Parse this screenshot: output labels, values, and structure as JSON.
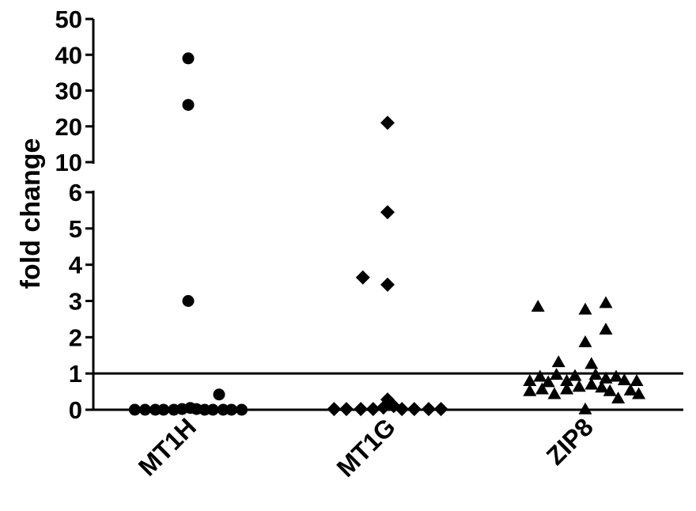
{
  "chart_data": {
    "type": "scatter",
    "ylabel": "fold change",
    "categories": [
      "MT1H",
      "MT1G",
      "ZIP8"
    ],
    "y_axis": {
      "broken": true,
      "lower_segment": {
        "range": [
          0,
          6
        ],
        "ticks": [
          0,
          1,
          2,
          3,
          4,
          5,
          6
        ]
      },
      "upper_segment": {
        "range": [
          10,
          50
        ],
        "ticks": [
          10,
          20,
          30,
          40,
          50
        ]
      }
    },
    "reference_lines": [
      0,
      1
    ],
    "grid": false,
    "series": [
      {
        "category": "MT1H",
        "marker": "circle",
        "points": [
          {
            "x": -0.26,
            "y": 0
          },
          {
            "x": -0.21,
            "y": 0
          },
          {
            "x": -0.16,
            "y": 0
          },
          {
            "x": -0.12,
            "y": 0
          },
          {
            "x": -0.07,
            "y": 0
          },
          {
            "x": -0.03,
            "y": 0.02
          },
          {
            "x": 0.01,
            "y": 0.05
          },
          {
            "x": 0.04,
            "y": 0.02
          },
          {
            "x": 0.08,
            "y": 0
          },
          {
            "x": 0.12,
            "y": 0
          },
          {
            "x": 0.17,
            "y": 0
          },
          {
            "x": 0.21,
            "y": 0
          },
          {
            "x": 0.26,
            "y": 0
          },
          {
            "x": 0.15,
            "y": 0.42
          },
          {
            "x": 0,
            "y": 3.0
          },
          {
            "x": 0,
            "y": 26
          },
          {
            "x": 0,
            "y": 39
          }
        ]
      },
      {
        "category": "MT1G",
        "marker": "diamond",
        "points": [
          {
            "x": -0.26,
            "y": 0.02
          },
          {
            "x": -0.2,
            "y": 0.02
          },
          {
            "x": -0.13,
            "y": 0.02
          },
          {
            "x": -0.07,
            "y": 0.02
          },
          {
            "x": -0.02,
            "y": 0.06
          },
          {
            "x": 0.0,
            "y": 0.28
          },
          {
            "x": 0.03,
            "y": 0.1
          },
          {
            "x": 0.07,
            "y": 0.02
          },
          {
            "x": 0.13,
            "y": 0.02
          },
          {
            "x": 0.2,
            "y": 0.02
          },
          {
            "x": 0.26,
            "y": 0.02
          },
          {
            "x": -0.12,
            "y": 3.65
          },
          {
            "x": 0,
            "y": 3.45
          },
          {
            "x": 0,
            "y": 5.45
          },
          {
            "x": 0,
            "y": 21
          }
        ]
      },
      {
        "category": "ZIP8",
        "marker": "triangle",
        "points": [
          {
            "x": -0.23,
            "y": 2.83
          },
          {
            "x": 0.0,
            "y": 2.75
          },
          {
            "x": 0.1,
            "y": 2.93
          },
          {
            "x": 0.1,
            "y": 2.2
          },
          {
            "x": 0.0,
            "y": 1.85
          },
          {
            "x": -0.13,
            "y": 1.3
          },
          {
            "x": 0.03,
            "y": 1.25
          },
          {
            "x": -0.27,
            "y": 0.78
          },
          {
            "x": -0.22,
            "y": 0.9
          },
          {
            "x": -0.18,
            "y": 0.75
          },
          {
            "x": -0.14,
            "y": 0.95
          },
          {
            "x": -0.09,
            "y": 0.78
          },
          {
            "x": -0.05,
            "y": 0.92
          },
          {
            "x": 0.05,
            "y": 0.95
          },
          {
            "x": 0.1,
            "y": 0.85
          },
          {
            "x": 0.15,
            "y": 0.9
          },
          {
            "x": 0.19,
            "y": 0.8
          },
          {
            "x": 0.25,
            "y": 0.78
          },
          {
            "x": -0.27,
            "y": 0.5
          },
          {
            "x": -0.21,
            "y": 0.55
          },
          {
            "x": -0.15,
            "y": 0.42
          },
          {
            "x": -0.09,
            "y": 0.55
          },
          {
            "x": -0.03,
            "y": 0.62
          },
          {
            "x": 0.03,
            "y": 0.68
          },
          {
            "x": 0.08,
            "y": 0.6
          },
          {
            "x": 0.12,
            "y": 0.5
          },
          {
            "x": 0.16,
            "y": 0.3
          },
          {
            "x": 0.22,
            "y": 0.52
          },
          {
            "x": 0.26,
            "y": 0.42
          },
          {
            "x": 0.0,
            "y": 0.0
          }
        ]
      }
    ]
  }
}
